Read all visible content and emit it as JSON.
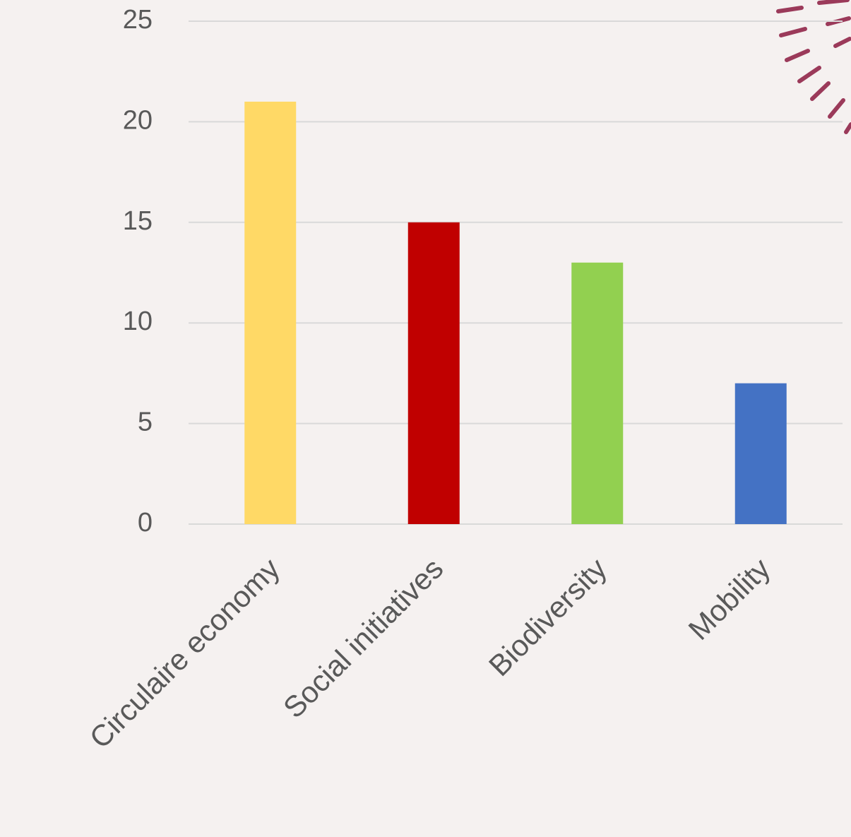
{
  "chart_data": {
    "type": "bar",
    "categories": [
      "Circulaire economy",
      "Social initiatives",
      "Biodiversity",
      "Mobility"
    ],
    "values": [
      21,
      15,
      13,
      7
    ],
    "colors": [
      "#ffd966",
      "#c00000",
      "#92d050",
      "#4472c4"
    ],
    "ylim": [
      0,
      25
    ],
    "yticks": [
      0,
      5,
      10,
      15,
      20,
      25
    ],
    "grid": true
  }
}
